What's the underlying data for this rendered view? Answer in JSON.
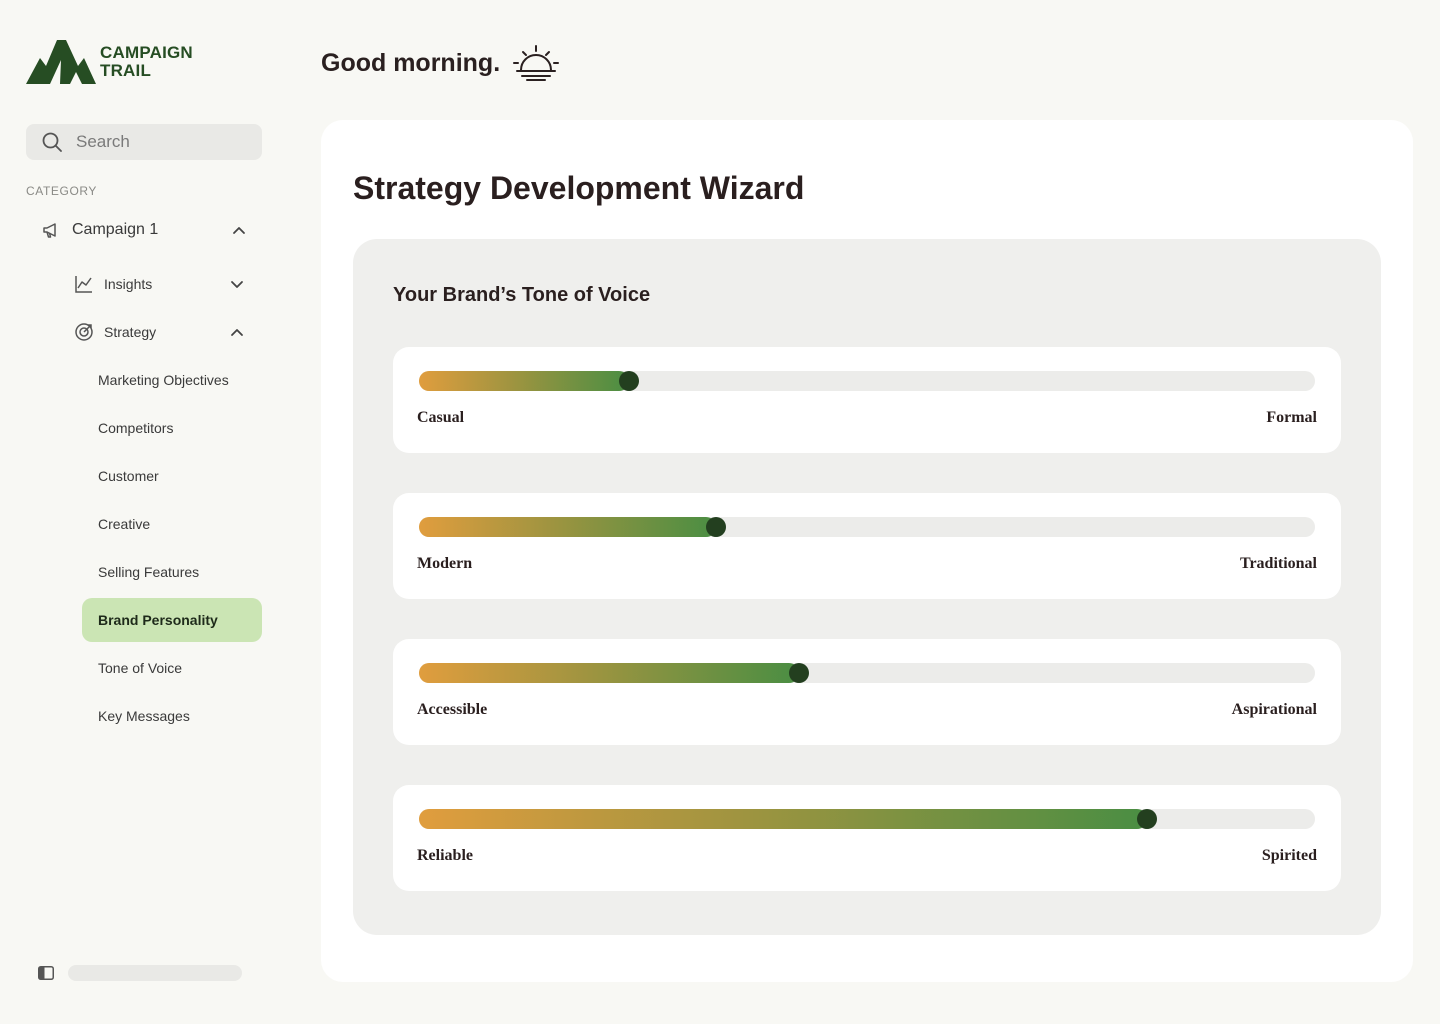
{
  "brand": {
    "line1": "CAMPAIGN",
    "line2": "TRAIL",
    "color": "#264d23"
  },
  "search": {
    "placeholder": "Search",
    "icon": "search-icon"
  },
  "sidebar": {
    "category_label": "CATEGORY",
    "campaign": {
      "label": "Campaign 1",
      "icon": "megaphone-icon",
      "expanded": true
    },
    "groups": [
      {
        "label": "Insights",
        "icon": "line-chart-icon",
        "expanded": false
      },
      {
        "label": "Strategy",
        "icon": "target-icon",
        "expanded": true
      }
    ],
    "strategy_items": [
      {
        "label": "Marketing Objectives",
        "active": false
      },
      {
        "label": "Competitors",
        "active": false
      },
      {
        "label": "Customer",
        "active": false
      },
      {
        "label": "Creative",
        "active": false
      },
      {
        "label": "Selling Features",
        "active": false
      },
      {
        "label": "Brand Personality",
        "active": true
      },
      {
        "label": "Tone of Voice",
        "active": false
      },
      {
        "label": "Key Messages",
        "active": false
      }
    ],
    "active_color": "#cbe5b4"
  },
  "header": {
    "greeting": "Good morning.",
    "icon": "sunrise-icon"
  },
  "main": {
    "title": "Strategy Development Wizard",
    "panel_title": "Your Brand’s Tone of Voice",
    "sliders": [
      {
        "left": "Casual",
        "right": "Formal",
        "value": 0.234
      },
      {
        "left": "Modern",
        "right": "Traditional",
        "value": 0.331
      },
      {
        "left": "Accessible",
        "right": "Aspirational",
        "value": 0.424
      },
      {
        "left": "Reliable",
        "right": "Spirited",
        "value": 0.812
      }
    ],
    "gradient_colors": [
      "#e09d3e",
      "#9e9440",
      "#4a8e43"
    ],
    "thumb_color": "#233f1f"
  }
}
